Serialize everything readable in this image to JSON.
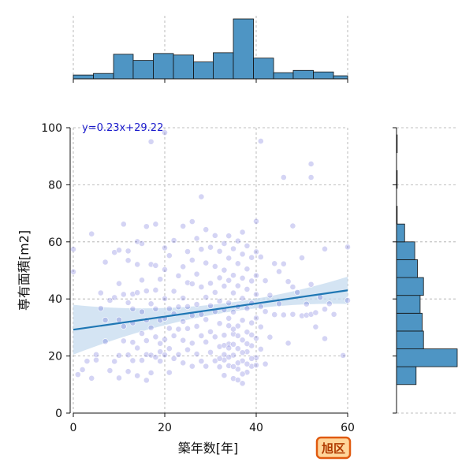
{
  "chart_data": {
    "type": "scatter",
    "xlabel": "築年数[年]",
    "ylabel": "専有面積[m2]",
    "xlim": [
      0,
      60
    ],
    "ylim": [
      0,
      100
    ],
    "x_ticks": [
      0,
      20,
      40,
      60
    ],
    "y_ticks": [
      0,
      20,
      40,
      60,
      80,
      100
    ],
    "grid": true,
    "regression": {
      "label": "y=0.23x+29.22",
      "slope": 0.23,
      "intercept": 29.22,
      "color": "#1f77b4",
      "band_color": "#c6dbef"
    },
    "point_color": "#3a3acc",
    "hist_color": "#4e95c4",
    "marginal_x_hist": {
      "bin_edges": [
        0,
        4.4,
        8.8,
        13.1,
        17.5,
        21.9,
        26.3,
        30.6,
        35,
        39.4,
        43.8,
        48.1,
        52.5,
        56.9,
        60
      ],
      "counts": [
        5,
        7,
        32,
        24,
        33,
        31,
        22,
        34,
        78,
        27,
        8,
        11,
        9,
        4
      ]
    },
    "marginal_y_hist": {
      "bin_edges": [
        10,
        16.25,
        22.5,
        28.75,
        35,
        41.25,
        47.5,
        53.75,
        60,
        66.25,
        72.5,
        78.75,
        85,
        91.25,
        97.5
      ],
      "counts": [
        29,
        90,
        40,
        38,
        35,
        40,
        31,
        27,
        12,
        1,
        0,
        1,
        0,
        1
      ]
    },
    "points": [
      [
        0,
        49.5
      ],
      [
        0,
        57.4
      ],
      [
        1,
        13.5
      ],
      [
        2,
        15.2
      ],
      [
        3,
        18.2
      ],
      [
        4,
        62.8
      ],
      [
        4,
        12.2
      ],
      [
        5,
        18.6
      ],
      [
        5,
        20.5
      ],
      [
        6,
        36.7
      ],
      [
        6,
        42.1
      ],
      [
        7,
        32.6
      ],
      [
        7,
        52.9
      ],
      [
        7,
        25.1
      ],
      [
        8,
        39.5
      ],
      [
        8,
        14.9
      ],
      [
        9,
        56.3
      ],
      [
        9,
        40.5
      ],
      [
        9,
        18.1
      ],
      [
        10,
        45.4
      ],
      [
        10,
        57.1
      ],
      [
        10,
        32.7
      ],
      [
        10,
        20.2
      ],
      [
        10,
        12.3
      ],
      [
        11,
        66.2
      ],
      [
        11,
        41.6
      ],
      [
        11,
        25.3
      ],
      [
        11,
        30.4
      ],
      [
        12,
        56.8
      ],
      [
        12,
        53.5
      ],
      [
        12,
        20.4
      ],
      [
        12,
        38.7
      ],
      [
        12,
        14.6
      ],
      [
        13,
        31.6
      ],
      [
        13,
        41.7
      ],
      [
        13,
        36.5
      ],
      [
        13,
        24.8
      ],
      [
        13,
        18.4
      ],
      [
        14,
        60.1
      ],
      [
        14,
        42.2
      ],
      [
        14,
        52.1
      ],
      [
        14,
        22.8
      ],
      [
        14,
        13.1
      ],
      [
        15,
        59.4
      ],
      [
        15,
        46.6
      ],
      [
        15,
        35.5
      ],
      [
        15,
        27.9
      ],
      [
        15,
        18.5
      ],
      [
        16,
        65.4
      ],
      [
        16,
        42.8
      ],
      [
        16,
        25.4
      ],
      [
        16,
        20.5
      ],
      [
        16,
        32.6
      ],
      [
        16,
        11.5
      ],
      [
        17,
        95.1
      ],
      [
        17,
        52.1
      ],
      [
        17,
        38.3
      ],
      [
        17,
        29.9
      ],
      [
        17,
        20.3
      ],
      [
        17,
        14.1
      ],
      [
        18,
        66.2
      ],
      [
        18,
        51.7
      ],
      [
        18,
        43.1
      ],
      [
        18,
        26.7
      ],
      [
        18,
        19.6
      ],
      [
        18,
        36.5
      ],
      [
        19,
        46.9
      ],
      [
        19,
        32.5
      ],
      [
        19,
        24.4
      ],
      [
        19,
        21.5
      ],
      [
        19,
        18.2
      ],
      [
        20,
        98.3
      ],
      [
        20,
        57.9
      ],
      [
        20,
        50.3
      ],
      [
        20,
        40.1
      ],
      [
        20,
        33.2
      ],
      [
        20,
        25.8
      ],
      [
        20,
        20.4
      ],
      [
        21,
        55.2
      ],
      [
        21,
        36.6
      ],
      [
        21,
        29.7
      ],
      [
        21,
        22.6
      ],
      [
        21,
        14.2
      ],
      [
        22,
        60.5
      ],
      [
        22,
        42.7
      ],
      [
        22,
        34.8
      ],
      [
        22,
        27.1
      ],
      [
        22,
        19.1
      ],
      [
        23,
        48.1
      ],
      [
        23,
        37.2
      ],
      [
        23,
        29.4
      ],
      [
        23,
        20.5
      ],
      [
        24,
        65.5
      ],
      [
        24,
        51.3
      ],
      [
        24,
        40.3
      ],
      [
        24,
        32.1
      ],
      [
        24,
        25.5
      ],
      [
        24,
        17.6
      ],
      [
        25,
        56.6
      ],
      [
        25,
        45.7
      ],
      [
        25,
        37.3
      ],
      [
        25,
        29.6
      ],
      [
        25,
        22.2
      ],
      [
        26,
        67.1
      ],
      [
        26,
        53.6
      ],
      [
        26,
        45.3
      ],
      [
        26,
        34.2
      ],
      [
        26,
        24.5
      ],
      [
        26,
        16.4
      ],
      [
        27,
        61.2
      ],
      [
        27,
        48.7
      ],
      [
        27,
        38.1
      ],
      [
        27,
        30.4
      ],
      [
        27,
        20.7
      ],
      [
        28,
        75.8
      ],
      [
        28,
        57.4
      ],
      [
        28,
        44.2
      ],
      [
        28,
        34.6
      ],
      [
        28,
        27.1
      ],
      [
        28,
        18.2
      ],
      [
        29,
        64.3
      ],
      [
        29,
        52.6
      ],
      [
        29,
        40.6
      ],
      [
        29,
        32.8
      ],
      [
        29,
        24.9
      ],
      [
        29,
        16.4
      ],
      [
        30,
        58.1
      ],
      [
        30,
        45.5
      ],
      [
        30,
        37.6
      ],
      [
        30,
        28.5
      ],
      [
        30,
        21.3
      ],
      [
        31,
        62.2
      ],
      [
        31,
        51.4
      ],
      [
        31,
        42.3
      ],
      [
        31,
        35.6
      ],
      [
        31,
        26.7
      ],
      [
        31,
        18.3
      ],
      [
        32,
        56.7
      ],
      [
        32,
        47.4
      ],
      [
        32,
        39.2
      ],
      [
        32,
        31.4
      ],
      [
        32,
        23.3
      ],
      [
        32,
        16.2
      ],
      [
        33,
        59.4
      ],
      [
        33,
        50.1
      ],
      [
        33,
        44.5
      ],
      [
        33,
        36.2
      ],
      [
        33,
        27.3
      ],
      [
        33,
        20.5
      ],
      [
        33,
        13.2
      ],
      [
        34,
        62.1
      ],
      [
        34,
        54.3
      ],
      [
        34,
        46.5
      ],
      [
        34,
        38.6
      ],
      [
        34,
        30.6
      ],
      [
        34,
        24.2
      ],
      [
        34,
        16.6
      ],
      [
        35,
        57.6
      ],
      [
        35,
        48.3
      ],
      [
        35,
        42.1
      ],
      [
        35,
        35.4
      ],
      [
        35,
        27.7
      ],
      [
        35,
        20.3
      ],
      [
        35,
        12.1
      ],
      [
        36,
        60.3
      ],
      [
        36,
        52.4
      ],
      [
        36,
        44.6
      ],
      [
        36,
        37.3
      ],
      [
        36,
        30.5
      ],
      [
        36,
        22.6
      ],
      [
        36,
        15.4
      ],
      [
        37,
        63.4
      ],
      [
        37,
        55.7
      ],
      [
        37,
        47.3
      ],
      [
        37,
        40.2
      ],
      [
        37,
        32.5
      ],
      [
        37,
        25.6
      ],
      [
        37,
        18.3
      ],
      [
        37,
        10.4
      ],
      [
        38,
        58.6
      ],
      [
        38,
        50.5
      ],
      [
        38,
        43.4
      ],
      [
        38,
        36.7
      ],
      [
        38,
        28.4
      ],
      [
        38,
        21.5
      ],
      [
        38,
        14.3
      ],
      [
        39,
        54.5
      ],
      [
        39,
        46.3
      ],
      [
        39,
        38.5
      ],
      [
        39,
        31.6
      ],
      [
        39,
        23.6
      ],
      [
        39,
        16.4
      ],
      [
        40,
        67.2
      ],
      [
        40,
        56.5
      ],
      [
        40,
        48.2
      ],
      [
        40,
        41.6
      ],
      [
        40,
        33.3
      ],
      [
        40,
        26.2
      ],
      [
        40,
        19.4
      ],
      [
        41,
        95.3
      ],
      [
        41,
        54.7
      ],
      [
        41,
        37.3
      ],
      [
        41,
        30.2
      ],
      [
        41,
        22.4
      ],
      [
        42,
        46.4
      ],
      [
        42,
        35.6
      ],
      [
        42,
        17.2
      ],
      [
        43,
        41.3
      ],
      [
        43,
        26.6
      ],
      [
        44,
        52.4
      ],
      [
        44,
        34.5
      ],
      [
        45,
        49.6
      ],
      [
        45,
        38.3
      ],
      [
        46,
        82.6
      ],
      [
        46,
        52.3
      ],
      [
        46,
        34.4
      ],
      [
        47,
        46.1
      ],
      [
        47,
        24.5
      ],
      [
        48,
        65.6
      ],
      [
        48,
        44.2
      ],
      [
        48,
        34.6
      ],
      [
        49,
        42.3
      ],
      [
        50,
        34.1
      ],
      [
        50,
        54.4
      ],
      [
        51,
        38.2
      ],
      [
        51,
        34.3
      ],
      [
        52,
        87.3
      ],
      [
        52,
        82.6
      ],
      [
        52,
        45.1
      ],
      [
        52,
        34.6
      ],
      [
        53,
        35.2
      ],
      [
        53,
        30.2
      ],
      [
        54,
        40.6
      ],
      [
        55,
        36.4
      ],
      [
        55,
        26.1
      ],
      [
        55,
        57.5
      ],
      [
        56,
        38.3
      ],
      [
        57,
        34.6
      ],
      [
        59,
        20.2
      ],
      [
        60,
        58.2
      ],
      [
        60,
        39.5
      ],
      [
        34,
        33.2
      ],
      [
        33,
        18.6
      ],
      [
        36,
        27.1
      ],
      [
        35,
        16.3
      ],
      [
        38,
        24.3
      ],
      [
        37,
        13.7
      ],
      [
        35,
        24.1
      ],
      [
        34,
        19.6
      ],
      [
        36,
        11.6
      ],
      [
        33,
        23.7
      ],
      [
        37,
        21.2
      ],
      [
        39,
        19.1
      ],
      [
        38,
        17.2
      ],
      [
        36,
        17.6
      ],
      [
        34,
        22.8
      ],
      [
        35,
        29.4
      ],
      [
        32,
        19.1
      ],
      [
        39,
        27.4
      ],
      [
        40,
        16.8
      ]
    ]
  },
  "badge": {
    "label": "旭区"
  }
}
